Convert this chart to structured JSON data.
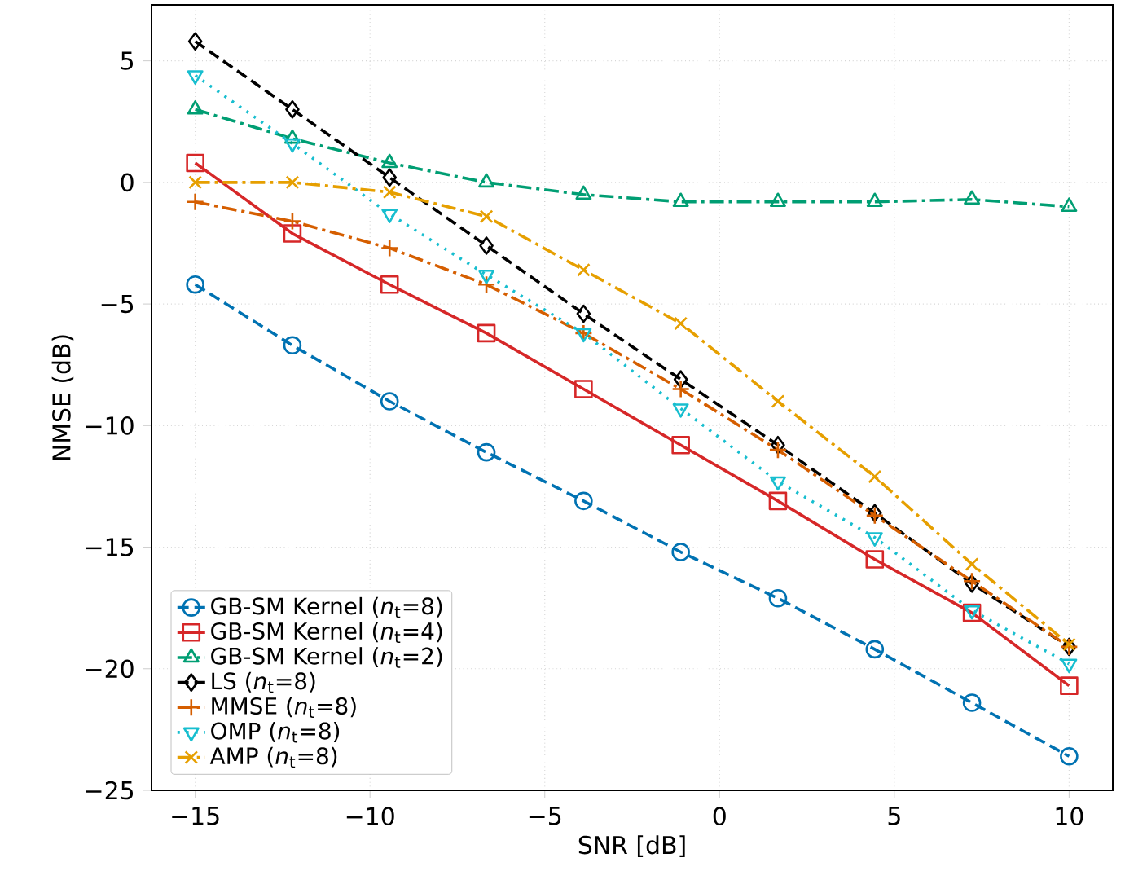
{
  "chart_data": {
    "type": "line",
    "xlabel": "SNR [dB]",
    "ylabel": "NMSE (dB)",
    "x": [
      -15,
      -12.22,
      -9.44,
      -6.67,
      -3.89,
      -1.11,
      1.67,
      4.44,
      7.22,
      10
    ],
    "xlim": [
      -16.25,
      11.25
    ],
    "ylim": [
      -25,
      7.3
    ],
    "xticks": [
      {
        "value": -15,
        "label": "−15"
      },
      {
        "value": -10,
        "label": "−10"
      },
      {
        "value": -5,
        "label": "−5"
      },
      0,
      5,
      10
    ],
    "yticks": [
      {
        "value": -25,
        "label": "−25"
      },
      {
        "value": -20,
        "label": "−20"
      },
      {
        "value": -15,
        "label": "−15"
      },
      {
        "value": -10,
        "label": "−10"
      },
      {
        "value": -5,
        "label": "−5"
      },
      0,
      5
    ],
    "grid": true,
    "legend": "bottom left",
    "series": [
      {
        "name": "GB-SM Kernel (*n*$_{t}$=8)",
        "color": "#0072b2",
        "marker": "circle",
        "line_style": "dashed",
        "values": [
          -4.2,
          -6.7,
          -9.0,
          -11.1,
          -13.1,
          -15.2,
          -17.1,
          -19.2,
          -21.4,
          -23.6
        ]
      },
      {
        "name": "GB-SM Kernel (*n*$_{t}$=4)",
        "color": "#d62728",
        "marker": "square",
        "line_style": "solid",
        "values": [
          0.8,
          -2.1,
          -4.2,
          -6.2,
          -8.5,
          -10.8,
          -13.1,
          -15.5,
          -17.7,
          -20.7
        ]
      },
      {
        "name": "GB-SM Kernel (*n*$_{t}$=2)",
        "color": "#009e73",
        "marker": "triangle",
        "line_style": "dashdot",
        "values": [
          3.0,
          1.8,
          0.8,
          0.0,
          -0.5,
          -0.8,
          -0.8,
          -0.8,
          -0.7,
          -1.0
        ]
      },
      {
        "name": "LS (*n*$_{t}$=8)",
        "color": "#000000",
        "marker": "diamond",
        "line_style": "dashed",
        "values": [
          5.8,
          3.0,
          0.2,
          -2.6,
          -5.4,
          -8.1,
          -10.8,
          -13.6,
          -16.5,
          -19.1
        ]
      },
      {
        "name": "MMSE (*n*$_{t}$=8)",
        "color": "#d55e00",
        "marker": "plus",
        "line_style": "dashdot",
        "values": [
          -0.8,
          -1.6,
          -2.7,
          -4.2,
          -6.2,
          -8.5,
          -11.0,
          -13.7,
          -16.4,
          -19.1
        ]
      },
      {
        "name": "OMP (*n*$_{t}$=8)",
        "color": "#17becf",
        "marker": "triangle-down",
        "line_style": "dotted",
        "values": [
          4.4,
          1.6,
          -1.3,
          -3.8,
          -6.2,
          -9.3,
          -12.3,
          -14.6,
          -17.6,
          -19.8
        ]
      },
      {
        "name": "AMP (*n*$_{t}$=8)",
        "color": "#e69f00",
        "marker": "x",
        "line_style": "dashdot",
        "values": [
          0.0,
          0.0,
          -0.4,
          -1.4,
          -3.6,
          -5.8,
          -9.0,
          -12.1,
          -15.7,
          -19.0
        ]
      }
    ]
  }
}
